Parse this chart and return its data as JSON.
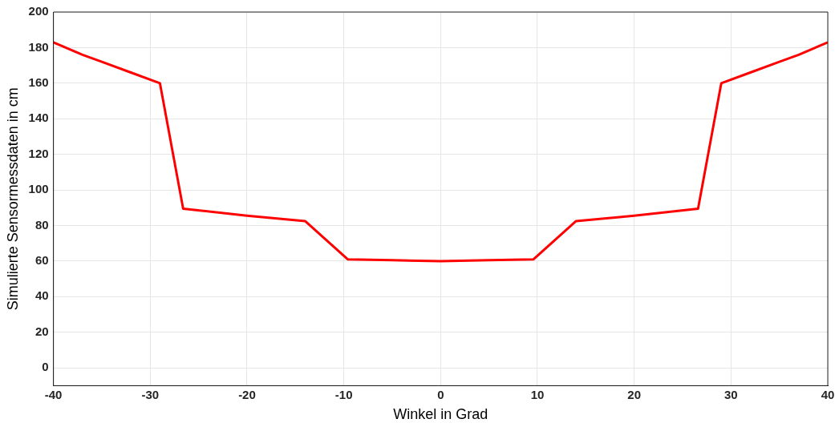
{
  "chart_data": {
    "type": "line",
    "xlabel": "Winkel in Grad",
    "ylabel": "Simulierte Sensormessdaten in cm",
    "x": [
      -40,
      -37,
      -35,
      -32,
      -29,
      -26.6,
      -20,
      -14,
      -9.6,
      -5,
      0,
      5,
      9.6,
      14,
      20,
      26.6,
      29,
      32,
      35,
      37,
      40
    ],
    "series": [
      {
        "color": "#ff0000",
        "values": [
          183,
          176,
          172,
          166,
          160,
          89.5,
          85.5,
          82.5,
          61,
          60.5,
          60,
          60.5,
          61,
          82.5,
          85.5,
          89.5,
          160,
          166,
          172,
          176,
          183
        ]
      }
    ],
    "xlim": [
      -40,
      40
    ],
    "xticks": [
      -40,
      -30,
      -20,
      -10,
      0,
      10,
      20,
      30,
      40
    ],
    "ylim": [
      -10,
      200
    ],
    "yticks": [
      0,
      20,
      40,
      60,
      80,
      100,
      120,
      140,
      160,
      180,
      200
    ],
    "grid": true,
    "legend": false,
    "marker": "none",
    "line_style": "solid"
  }
}
